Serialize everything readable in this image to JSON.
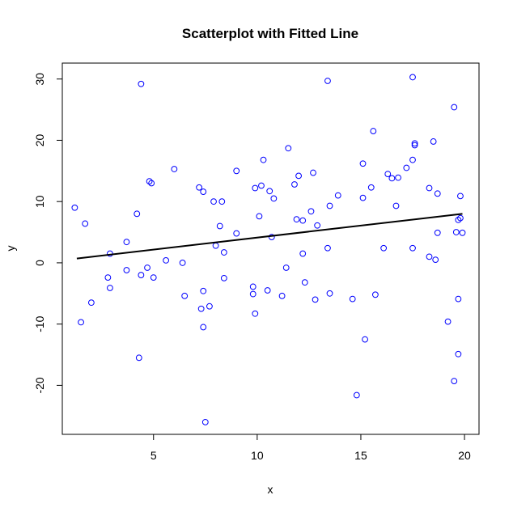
{
  "chart_data": {
    "type": "scatter",
    "title": "Scatterplot with Fitted Line",
    "xlabel": "x",
    "ylabel": "y",
    "xlim": [
      0.6,
      20.7
    ],
    "ylim": [
      -28.0,
      32.6
    ],
    "x_ticks": [
      5,
      10,
      15,
      20
    ],
    "x_tick_labels": [
      "5",
      "10",
      "15",
      "20"
    ],
    "y_ticks": [
      -20,
      -10,
      0,
      10,
      20,
      30
    ],
    "y_tick_labels": [
      "-20",
      "-10",
      "0",
      "10",
      "20",
      "30"
    ],
    "grid": false,
    "legend": "none",
    "point_color": "#0000ff",
    "line_color": "#000000",
    "fitted_line": {
      "x": [
        1.3,
        19.9
      ],
      "y": [
        0.7,
        8.0
      ]
    },
    "points": [
      [
        1.2,
        9.0
      ],
      [
        1.5,
        -9.7
      ],
      [
        1.7,
        6.4
      ],
      [
        2.0,
        -6.5
      ],
      [
        2.8,
        -2.4
      ],
      [
        2.9,
        -4.1
      ],
      [
        2.9,
        1.5
      ],
      [
        3.7,
        3.4
      ],
      [
        3.7,
        -1.2
      ],
      [
        4.2,
        8.0
      ],
      [
        4.3,
        -15.5
      ],
      [
        4.4,
        29.2
      ],
      [
        4.4,
        -2.0
      ],
      [
        4.7,
        -0.8
      ],
      [
        4.8,
        13.3
      ],
      [
        4.9,
        13.0
      ],
      [
        5.0,
        -2.4
      ],
      [
        5.6,
        0.4
      ],
      [
        6.0,
        15.3
      ],
      [
        6.4,
        0.0
      ],
      [
        6.5,
        -5.4
      ],
      [
        7.2,
        12.3
      ],
      [
        7.3,
        -7.5
      ],
      [
        7.4,
        -4.6
      ],
      [
        7.4,
        -10.5
      ],
      [
        7.4,
        11.6
      ],
      [
        7.5,
        -26.0
      ],
      [
        7.7,
        -7.1
      ],
      [
        7.9,
        10.0
      ],
      [
        8.0,
        2.8
      ],
      [
        8.2,
        6.0
      ],
      [
        8.3,
        10.0
      ],
      [
        8.4,
        -2.5
      ],
      [
        8.4,
        1.7
      ],
      [
        9.0,
        15.0
      ],
      [
        9.0,
        4.8
      ],
      [
        9.8,
        -3.9
      ],
      [
        9.8,
        -5.1
      ],
      [
        9.9,
        12.2
      ],
      [
        9.9,
        -8.3
      ],
      [
        10.1,
        7.6
      ],
      [
        10.2,
        12.6
      ],
      [
        10.3,
        16.8
      ],
      [
        10.5,
        -4.5
      ],
      [
        10.6,
        11.7
      ],
      [
        10.7,
        4.2
      ],
      [
        10.8,
        10.5
      ],
      [
        11.2,
        -5.4
      ],
      [
        11.4,
        -0.8
      ],
      [
        11.5,
        18.7
      ],
      [
        11.8,
        12.8
      ],
      [
        11.9,
        7.1
      ],
      [
        12.0,
        14.2
      ],
      [
        12.2,
        6.9
      ],
      [
        12.2,
        1.5
      ],
      [
        12.3,
        -3.2
      ],
      [
        12.6,
        8.4
      ],
      [
        12.7,
        14.7
      ],
      [
        12.8,
        -6.0
      ],
      [
        12.9,
        6.1
      ],
      [
        13.4,
        2.4
      ],
      [
        13.4,
        29.7
      ],
      [
        13.5,
        -5.0
      ],
      [
        13.5,
        9.3
      ],
      [
        13.9,
        11.0
      ],
      [
        14.6,
        -5.9
      ],
      [
        14.8,
        -21.6
      ],
      [
        15.1,
        10.6
      ],
      [
        15.1,
        16.2
      ],
      [
        15.2,
        -12.5
      ],
      [
        15.5,
        12.3
      ],
      [
        15.6,
        21.5
      ],
      [
        15.7,
        -5.2
      ],
      [
        16.1,
        2.4
      ],
      [
        16.3,
        14.5
      ],
      [
        16.5,
        13.8
      ],
      [
        16.7,
        9.3
      ],
      [
        16.8,
        13.9
      ],
      [
        17.2,
        15.5
      ],
      [
        17.5,
        16.8
      ],
      [
        17.5,
        2.4
      ],
      [
        17.5,
        30.3
      ],
      [
        17.6,
        19.5
      ],
      [
        17.6,
        19.2
      ],
      [
        18.3,
        12.2
      ],
      [
        18.3,
        1.0
      ],
      [
        18.5,
        19.8
      ],
      [
        18.6,
        0.5
      ],
      [
        18.7,
        4.9
      ],
      [
        18.7,
        11.3
      ],
      [
        19.2,
        -9.6
      ],
      [
        19.5,
        25.4
      ],
      [
        19.5,
        -19.3
      ],
      [
        19.6,
        5.0
      ],
      [
        19.7,
        -5.9
      ],
      [
        19.7,
        7.0
      ],
      [
        19.7,
        -14.9
      ],
      [
        19.8,
        10.9
      ],
      [
        19.8,
        7.3
      ],
      [
        19.9,
        4.9
      ]
    ]
  }
}
